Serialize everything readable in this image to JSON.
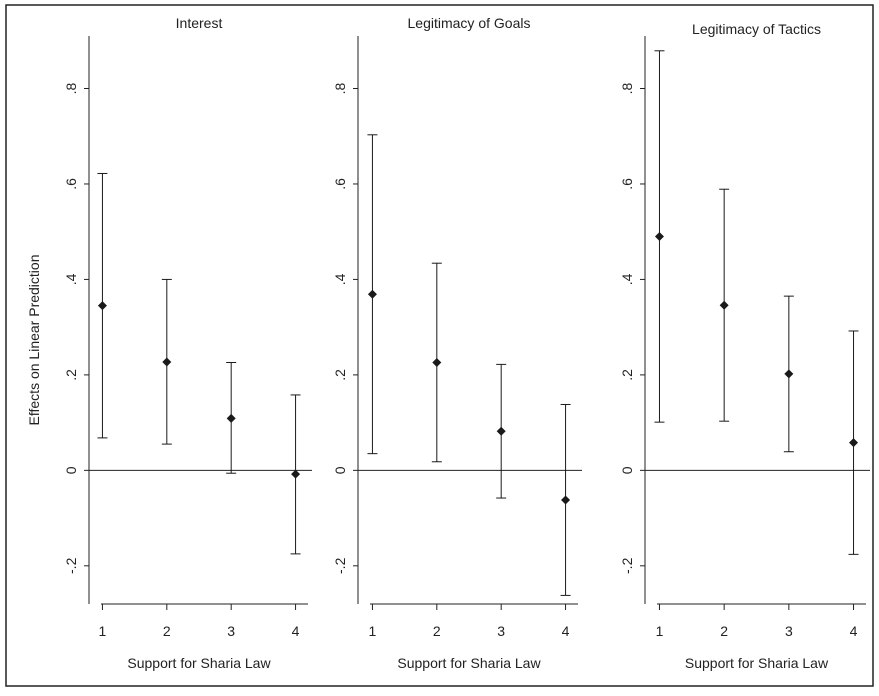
{
  "y_axis_title": "Effects on Linear Prediction",
  "chart_data": [
    {
      "type": "scatter",
      "title": "Interest",
      "xlabel": "Support for Sharia Law",
      "ylabel": "Effects on Linear Prediction",
      "x": [
        1,
        2,
        3,
        4
      ],
      "x_tick_labels": [
        "1",
        "2",
        "3",
        "4"
      ],
      "y": [
        0.345,
        0.227,
        0.109,
        -0.008
      ],
      "ci_low": [
        0.068,
        0.055,
        -0.006,
        -0.175
      ],
      "ci_high": [
        0.622,
        0.4,
        0.226,
        0.158
      ],
      "y_ticks": [
        -0.2,
        0,
        0.2,
        0.4,
        0.6,
        0.8
      ],
      "y_tick_labels": [
        "-.2",
        "0",
        ".2",
        ".4",
        ".6",
        ".8"
      ],
      "xlim": [
        0.9,
        4.1
      ],
      "ylim": [
        -0.28,
        0.91
      ],
      "reference_line": 0,
      "grid": false
    },
    {
      "type": "scatter",
      "title": "Legitimacy of Goals",
      "xlabel": "Support for Sharia Law",
      "x": [
        1,
        2,
        3,
        4
      ],
      "x_tick_labels": [
        "1",
        "2",
        "3",
        "4"
      ],
      "y": [
        0.369,
        0.226,
        0.082,
        -0.062
      ],
      "ci_low": [
        0.035,
        0.018,
        -0.058,
        -0.262
      ],
      "ci_high": [
        0.703,
        0.434,
        0.222,
        0.138
      ],
      "y_ticks": [
        -0.2,
        0,
        0.2,
        0.4,
        0.6,
        0.8
      ],
      "y_tick_labels": [
        "-.2",
        "0",
        ".2",
        ".4",
        ".6",
        ".8"
      ],
      "xlim": [
        0.9,
        4.1
      ],
      "ylim": [
        -0.28,
        0.91
      ],
      "reference_line": 0,
      "grid": false
    },
    {
      "type": "scatter",
      "title": "Legitimacy of Tactics",
      "xlabel": "Support for Sharia Law",
      "x": [
        1,
        2,
        3,
        4
      ],
      "x_tick_labels": [
        "1",
        "2",
        "3",
        "4"
      ],
      "y": [
        0.49,
        0.346,
        0.202,
        0.058
      ],
      "ci_low": [
        0.101,
        0.103,
        0.039,
        -0.176
      ],
      "ci_high": [
        0.879,
        0.589,
        0.365,
        0.292
      ],
      "y_ticks": [
        -0.2,
        0,
        0.2,
        0.4,
        0.6,
        0.8
      ],
      "y_tick_labels": [
        "-.2",
        "0",
        ".2",
        ".4",
        ".6",
        ".8"
      ],
      "xlim": [
        0.9,
        4.1
      ],
      "ylim": [
        -0.28,
        0.91
      ],
      "reference_line": 0,
      "grid": false
    }
  ],
  "colors": {
    "marker": "#1a1a1a",
    "error_bar": "#1a1a1a",
    "axis": "#222222",
    "border": "#222222",
    "background": "#ffffff"
  }
}
